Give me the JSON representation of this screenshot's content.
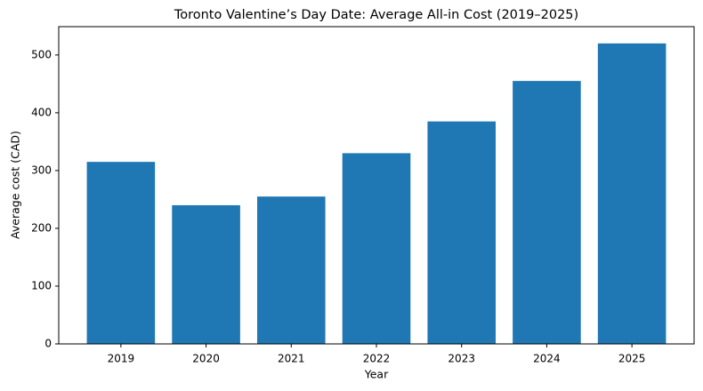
{
  "chart_data": {
    "type": "bar",
    "title": "Toronto Valentine’s Day Date: Average All-in Cost (2019–2025)",
    "x_label": "Year",
    "y_label": "Average cost (CAD)",
    "categories": [
      "2019",
      "2020",
      "2021",
      "2022",
      "2023",
      "2024",
      "2025"
    ],
    "values": [
      315,
      240,
      255,
      330,
      385,
      455,
      520
    ],
    "color": "#1f77b4",
    "ylim": [
      0,
      549
    ],
    "yticks": [
      0,
      100,
      200,
      300,
      400,
      500
    ],
    "grid": false
  }
}
